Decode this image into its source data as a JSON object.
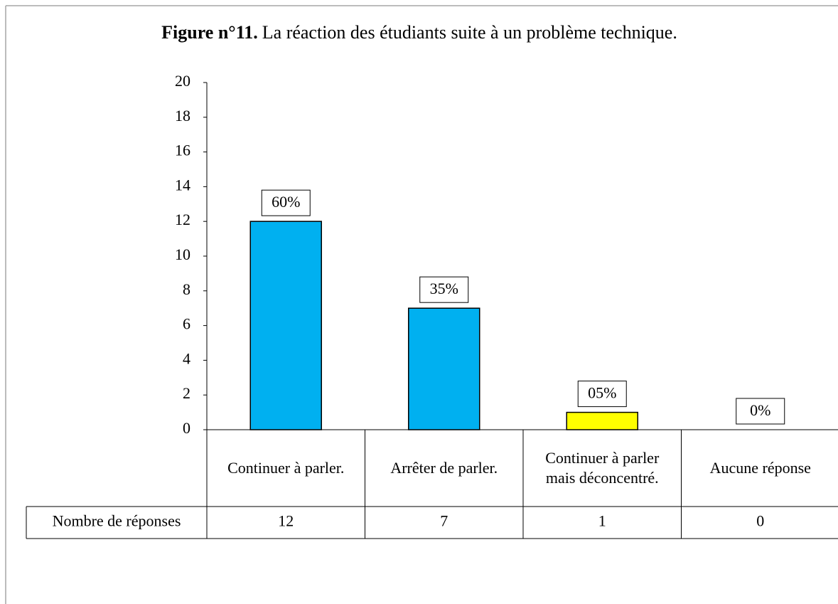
{
  "chart_data": {
    "type": "bar",
    "title_label": "Figure n°11.",
    "title": "La réaction des étudiants suite à un problème technique.",
    "categories": [
      "Continuer à parler.",
      "Arrêter de parler.",
      "Continuer à parler mais déconcentré.",
      "Aucune réponse"
    ],
    "values": [
      12,
      7,
      1,
      0
    ],
    "data_labels": [
      "60%",
      "35%",
      "05%",
      "0%"
    ],
    "colors": [
      "#00b0f0",
      "#00b0f0",
      "#ffff00",
      "#00b0f0"
    ],
    "table_row_label": "Nombre de réponses",
    "ylim": [
      0,
      20
    ],
    "yticks": [
      0,
      2,
      4,
      6,
      8,
      10,
      12,
      14,
      16,
      18,
      20
    ],
    "grid": false
  }
}
